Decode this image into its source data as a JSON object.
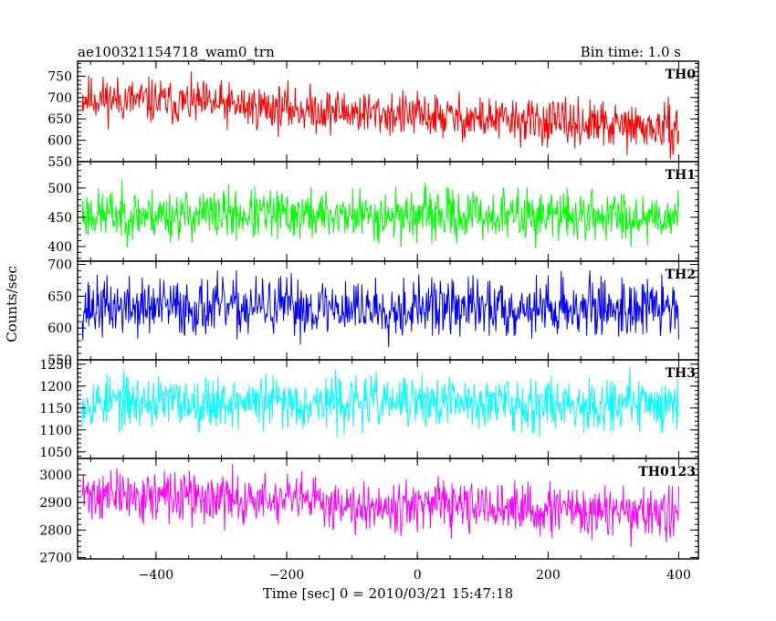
{
  "header": {
    "left_title": "ae100321154718_wam0_trn",
    "right_title": "Bin time: 1.0 s"
  },
  "axes": {
    "ylabel": "Counts/sec",
    "xlabel": "Time [sec] 0 = 2010/03/21 15:47:18"
  },
  "chart_data": {
    "type": "line",
    "x_range": [
      -513,
      400
    ],
    "xlim": [
      -520,
      430
    ],
    "x_ticks": [
      -400,
      -200,
      0,
      200,
      400
    ],
    "x_tick_labels": [
      "−400",
      "−200",
      "0",
      "200",
      "400"
    ],
    "bin_time_sec": 1.0,
    "panels": [
      {
        "name": "TH0",
        "color": "#ff0000",
        "ylim": [
          550,
          785
        ],
        "y_ticks": [
          550,
          600,
          650,
          700,
          750
        ],
        "trend_start": 700,
        "trend_end": 625,
        "noise_amplitude": 55,
        "seed": 11
      },
      {
        "name": "TH1",
        "color": "#00ff00",
        "ylim": [
          375,
          545
        ],
        "y_ticks": [
          400,
          450,
          500
        ],
        "trend_start": 455,
        "trend_end": 452,
        "noise_amplitude": 45,
        "seed": 23
      },
      {
        "name": "TH2",
        "color": "#0000ff",
        "ylim": [
          550,
          705
        ],
        "y_ticks": [
          550,
          600,
          650,
          700
        ],
        "trend_start": 632,
        "trend_end": 632,
        "noise_amplitude": 48,
        "seed": 37
      },
      {
        "name": "TH3",
        "color": "#00ffff",
        "ylim": [
          1035,
          1260
        ],
        "y_ticks": [
          1050,
          1100,
          1150,
          1200,
          1250
        ],
        "trend_start": 1165,
        "trend_end": 1160,
        "noise_amplitude": 62,
        "seed": 53
      },
      {
        "name": "TH0123",
        "color": "#ff00ff",
        "ylim": [
          2695,
          3060
        ],
        "y_ticks": [
          2700,
          2800,
          2900,
          3000
        ],
        "trend_start": 2930,
        "trend_end": 2855,
        "noise_amplitude": 95,
        "seed": 71
      }
    ]
  }
}
